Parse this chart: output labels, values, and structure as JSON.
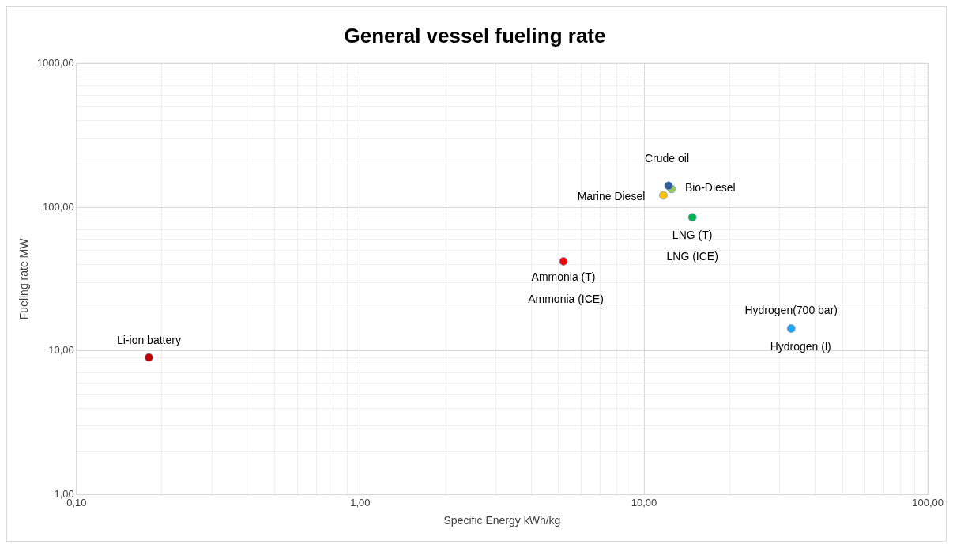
{
  "chart_data": {
    "type": "scatter",
    "title": "General vessel fueling rate",
    "xlabel": "Specific Energy kWh/kg",
    "ylabel": "Fueling rate MW",
    "log": "xy",
    "grid": true,
    "legend": false,
    "marker": "circle",
    "xlim": [
      0.1,
      100
    ],
    "ylim": [
      1,
      1000
    ],
    "xticks": [
      {
        "value": 0.1,
        "label": "0,10"
      },
      {
        "value": 0.2,
        "label": null
      },
      {
        "value": 0.3,
        "label": null
      },
      {
        "value": 0.4,
        "label": null
      },
      {
        "value": 0.5,
        "label": null
      },
      {
        "value": 0.6,
        "label": null
      },
      {
        "value": 0.7,
        "label": null
      },
      {
        "value": 0.8,
        "label": null
      },
      {
        "value": 0.9,
        "label": null
      },
      {
        "value": 1,
        "label": "1,00"
      },
      {
        "value": 2,
        "label": null
      },
      {
        "value": 3,
        "label": null
      },
      {
        "value": 4,
        "label": null
      },
      {
        "value": 5,
        "label": null
      },
      {
        "value": 6,
        "label": null
      },
      {
        "value": 7,
        "label": null
      },
      {
        "value": 8,
        "label": null
      },
      {
        "value": 9,
        "label": null
      },
      {
        "value": 10,
        "label": "10,00"
      },
      {
        "value": 20,
        "label": null
      },
      {
        "value": 30,
        "label": null
      },
      {
        "value": 40,
        "label": null
      },
      {
        "value": 50,
        "label": null
      },
      {
        "value": 60,
        "label": null
      },
      {
        "value": 70,
        "label": null
      },
      {
        "value": 80,
        "label": null
      },
      {
        "value": 90,
        "label": null
      },
      {
        "value": 100,
        "label": "100,00"
      }
    ],
    "yticks": [
      {
        "value": 1,
        "label": "1,00"
      },
      {
        "value": 2,
        "label": null
      },
      {
        "value": 3,
        "label": null
      },
      {
        "value": 4,
        "label": null
      },
      {
        "value": 5,
        "label": null
      },
      {
        "value": 6,
        "label": null
      },
      {
        "value": 7,
        "label": null
      },
      {
        "value": 8,
        "label": null
      },
      {
        "value": 9,
        "label": null
      },
      {
        "value": 10,
        "label": "10,00"
      },
      {
        "value": 20,
        "label": null
      },
      {
        "value": 30,
        "label": null
      },
      {
        "value": 40,
        "label": null
      },
      {
        "value": 50,
        "label": null
      },
      {
        "value": 60,
        "label": null
      },
      {
        "value": 70,
        "label": null
      },
      {
        "value": 80,
        "label": null
      },
      {
        "value": 90,
        "label": null
      },
      {
        "value": 100,
        "label": "100,00"
      },
      {
        "value": 200,
        "label": null
      },
      {
        "value": 300,
        "label": null
      },
      {
        "value": 400,
        "label": null
      },
      {
        "value": 500,
        "label": null
      },
      {
        "value": 600,
        "label": null
      },
      {
        "value": 700,
        "label": null
      },
      {
        "value": 800,
        "label": null
      },
      {
        "value": 900,
        "label": null
      },
      {
        "value": 1000,
        "label": "1000,00"
      }
    ],
    "series": [
      {
        "name": "Li-ion battery",
        "color": "#c00000",
        "x": [
          0.18
        ],
        "values": [
          9
        ]
      },
      {
        "name": "Ammonia (T)",
        "color": "#ff0000",
        "x": [
          5.2
        ],
        "values": [
          42
        ]
      },
      {
        "name": "Marine Diesel",
        "color": "#ffc000",
        "x": [
          11.7
        ],
        "values": [
          121
        ]
      },
      {
        "name": "Crude oil",
        "color": "#2e5f99",
        "x": [
          12.2
        ],
        "values": [
          141
        ]
      },
      {
        "name": "Bio-Diesel",
        "color": "#92d050",
        "x": [
          12.5
        ],
        "values": [
          134
        ]
      },
      {
        "name": "LNG (T)",
        "color": "#00b050",
        "x": [
          14.8
        ],
        "values": [
          85
        ]
      },
      {
        "name": "Hydrogen(700 bar)",
        "color": "#1ea7f0",
        "x": [
          33
        ],
        "values": [
          14.3
        ]
      }
    ],
    "annotations": [
      {
        "text": "Ammonia (ICE)",
        "x": 5.2,
        "y": 42
      },
      {
        "text": "LNG (ICE)",
        "x": 14.8,
        "y": 85
      },
      {
        "text": "Hydrogen (l)",
        "x": 33,
        "y": 14.3
      }
    ]
  }
}
